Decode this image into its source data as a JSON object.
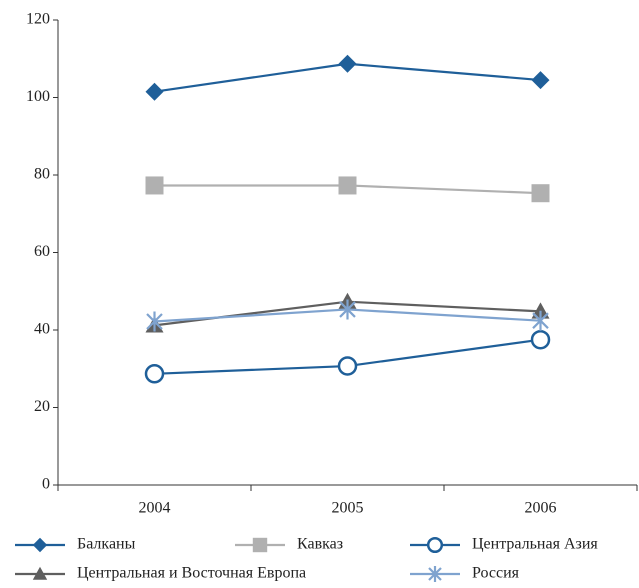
{
  "chart_data": {
    "type": "line",
    "categories": [
      "2004",
      "2005",
      "2006"
    ],
    "series": [
      {
        "name": "Балканы",
        "color": "#1f5f99",
        "marker": "diamond",
        "values": [
          101.5,
          108.7,
          104.5
        ]
      },
      {
        "name": "Кавказ",
        "color": "#b0b0b0",
        "marker": "square",
        "values": [
          77.3,
          77.3,
          75.3
        ]
      },
      {
        "name": "Центральная Азия",
        "color": "#1f5f99",
        "marker": "open-circle",
        "values": [
          28.7,
          30.7,
          37.5
        ]
      },
      {
        "name": "Центральная и Восточная Европа",
        "color": "#5f5f5f",
        "marker": "triangle",
        "values": [
          41.2,
          47.3,
          44.8
        ]
      },
      {
        "name": "Россия",
        "color": "#7fa3cf",
        "marker": "asterisk",
        "values": [
          42.2,
          45.3,
          42.4
        ]
      }
    ],
    "ylim": [
      0,
      120
    ],
    "yticks": [
      0,
      20,
      40,
      60,
      80,
      100,
      120
    ],
    "grid": false,
    "legend": "bottom"
  }
}
